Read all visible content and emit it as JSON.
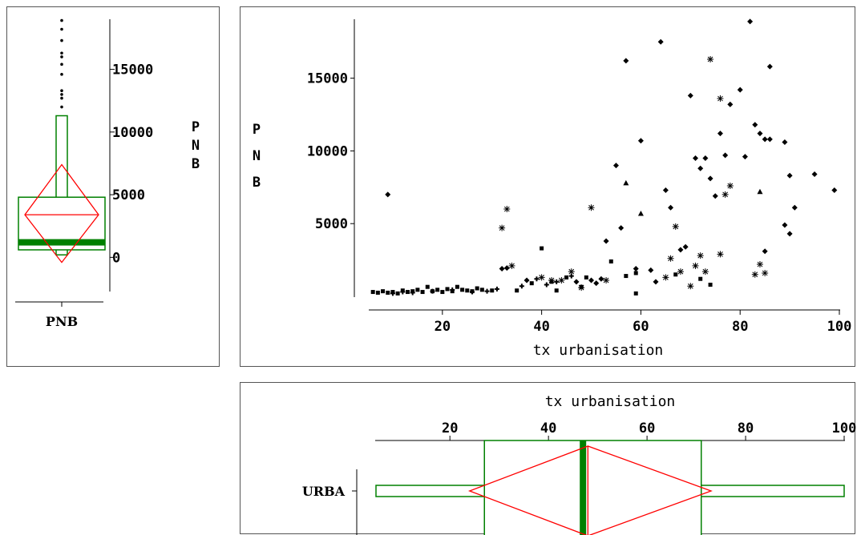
{
  "colors": {
    "box": "#008000",
    "diamond": "#ff0000",
    "axis": "#000000",
    "frame": "#555555",
    "points": "#000000"
  },
  "chart_data": [
    {
      "type": "box",
      "id": "pnb-box",
      "category_label": "PNB",
      "ylabel": "PNB",
      "yticks": [
        0,
        5000,
        10000,
        15000
      ],
      "tick_labels": [
        "0",
        "5000",
        "10000",
        "15000"
      ],
      "ylim": [
        -1000,
        19000
      ],
      "min": 200,
      "q1": 600,
      "median": 1200,
      "q3": 4800,
      "whisker_high": 11300,
      "mean": 3400,
      "ci_low": -400,
      "ci_high": 7400,
      "outliers": [
        12000,
        12700,
        13000,
        13300,
        14600,
        15400,
        16000,
        16300,
        17300,
        18200,
        18900
      ]
    },
    {
      "type": "scatter",
      "id": "pnb-vs-urba",
      "xlabel": "tx urbanisation",
      "ylabel": "PNB",
      "xlim": [
        5,
        100
      ],
      "ylim": [
        0,
        19000
      ],
      "xticks": [
        20,
        40,
        60,
        80,
        100
      ],
      "xtick_labels": [
        "20",
        "40",
        "60",
        "80",
        "100"
      ],
      "yticks": [
        5000,
        10000,
        15000
      ],
      "ytick_labels": [
        "5000",
        "10000",
        "15000"
      ],
      "series": [
        {
          "marker": "diamond",
          "points": [
            [
              9,
              7000
            ],
            [
              32,
              1900
            ],
            [
              33,
              1950
            ],
            [
              37,
              1100
            ],
            [
              47,
              1000
            ],
            [
              50,
              1100
            ],
            [
              51,
              900
            ],
            [
              52,
              1200
            ],
            [
              53,
              3800
            ],
            [
              55,
              9000
            ],
            [
              56,
              4700
            ],
            [
              57,
              16200
            ],
            [
              60,
              10700
            ],
            [
              63,
              1000
            ],
            [
              64,
              17500
            ],
            [
              65,
              7300
            ],
            [
              66,
              6100
            ],
            [
              68,
              3200
            ],
            [
              70,
              13800
            ],
            [
              71,
              9500
            ],
            [
              72,
              8800
            ],
            [
              73,
              9500
            ],
            [
              74,
              8100
            ],
            [
              75,
              6900
            ],
            [
              76,
              11200
            ],
            [
              77,
              9700
            ],
            [
              78,
              13200
            ],
            [
              80,
              14200
            ],
            [
              81,
              9600
            ],
            [
              82,
              18900
            ],
            [
              83,
              11800
            ],
            [
              84,
              11200
            ],
            [
              85,
              10800
            ],
            [
              86,
              15800
            ],
            [
              86,
              10800
            ],
            [
              89,
              10600
            ],
            [
              89,
              4900
            ],
            [
              90,
              8300
            ],
            [
              90,
              4300
            ],
            [
              91,
              6100
            ],
            [
              95,
              8400
            ],
            [
              99,
              7300
            ],
            [
              85,
              3100
            ],
            [
              59,
              1900
            ],
            [
              62,
              1800
            ],
            [
              69,
              3400
            ]
          ]
        },
        {
          "marker": "square",
          "points": [
            [
              6,
              300
            ],
            [
              7,
              250
            ],
            [
              8,
              350
            ],
            [
              9,
              250
            ],
            [
              10,
              300
            ],
            [
              11,
              200
            ],
            [
              12,
              400
            ],
            [
              13,
              300
            ],
            [
              14,
              350
            ],
            [
              15,
              450
            ],
            [
              16,
              300
            ],
            [
              17,
              650
            ],
            [
              18,
              350
            ],
            [
              19,
              450
            ],
            [
              20,
              300
            ],
            [
              21,
              500
            ],
            [
              22,
              350
            ],
            [
              23,
              650
            ],
            [
              24,
              450
            ],
            [
              25,
              400
            ],
            [
              26,
              350
            ],
            [
              27,
              550
            ],
            [
              28,
              450
            ],
            [
              30,
              400
            ],
            [
              35,
              400
            ],
            [
              38,
              900
            ],
            [
              40,
              3300
            ],
            [
              42,
              1000
            ],
            [
              43,
              400
            ],
            [
              45,
              1300
            ],
            [
              48,
              650
            ],
            [
              49,
              1300
            ],
            [
              54,
              2400
            ],
            [
              57,
              1400
            ],
            [
              59,
              200
            ],
            [
              59,
              1600
            ],
            [
              67,
              1500
            ],
            [
              72,
              1200
            ],
            [
              74,
              800
            ]
          ]
        },
        {
          "marker": "plus",
          "points": [
            [
              10,
              200
            ],
            [
              12,
              300
            ],
            [
              14,
              250
            ],
            [
              18,
              350
            ],
            [
              22,
              450
            ],
            [
              26,
              300
            ],
            [
              29,
              350
            ],
            [
              31,
              500
            ],
            [
              36,
              700
            ],
            [
              39,
              1200
            ],
            [
              41,
              800
            ],
            [
              43,
              1000
            ],
            [
              46,
              1400
            ]
          ]
        },
        {
          "marker": "triangle",
          "points": [
            [
              57,
              7800
            ],
            [
              60,
              5700
            ],
            [
              84,
              7200
            ]
          ]
        },
        {
          "marker": "asterisk",
          "points": [
            [
              32,
              4700
            ],
            [
              33,
              6000
            ],
            [
              34,
              2100
            ],
            [
              40,
              1300
            ],
            [
              42,
              1100
            ],
            [
              44,
              1100
            ],
            [
              46,
              1700
            ],
            [
              48,
              600
            ],
            [
              50,
              6100
            ],
            [
              53,
              1100
            ],
            [
              65,
              1300
            ],
            [
              66,
              2600
            ],
            [
              67,
              4800
            ],
            [
              68,
              1700
            ],
            [
              70,
              700
            ],
            [
              71,
              2100
            ],
            [
              72,
              2800
            ],
            [
              73,
              1700
            ],
            [
              74,
              16300
            ],
            [
              76,
              2900
            ],
            [
              76,
              13600
            ],
            [
              77,
              7000
            ],
            [
              78,
              7600
            ],
            [
              83,
              1500
            ],
            [
              84,
              2200
            ],
            [
              85,
              1600
            ]
          ]
        }
      ]
    },
    {
      "type": "box",
      "id": "urba-box",
      "orientation": "horizontal",
      "category_label": "URBA",
      "xlabel": "tx urbanisation",
      "xlim": [
        5,
        100
      ],
      "xticks": [
        20,
        40,
        60,
        80,
        100
      ],
      "xtick_labels": [
        "20",
        "40",
        "60",
        "80",
        "100"
      ],
      "min": 5,
      "q1": 27,
      "median": 47,
      "q3": 71,
      "max": 100,
      "mean": 48,
      "ci_low": 24,
      "ci_high": 73
    }
  ]
}
